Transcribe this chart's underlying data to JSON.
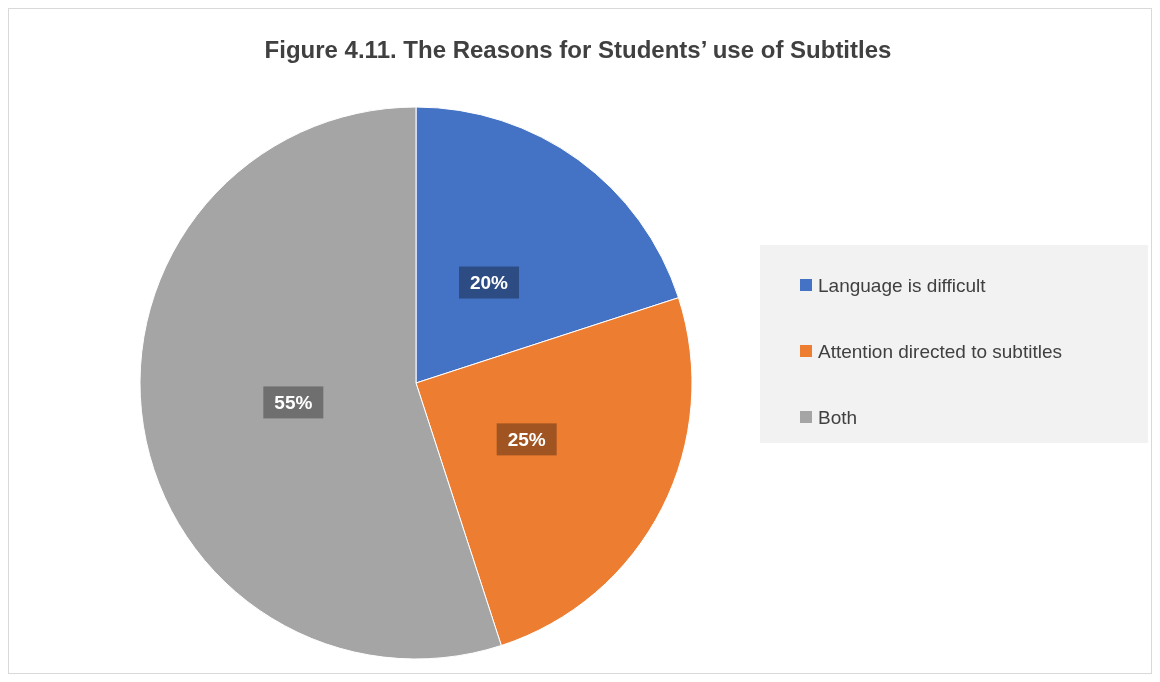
{
  "chart_data": {
    "type": "pie",
    "title": "Figure 4.11. The Reasons for Students’ use of Subtitles",
    "categories": [
      "Language is difficult",
      "Attention directed to subtitles",
      "Both"
    ],
    "values": [
      20,
      25,
      55
    ],
    "colors": [
      "#4472c4",
      "#ed7d31",
      "#a5a5a5"
    ],
    "value_labels": [
      "20%",
      "25%",
      "55%"
    ],
    "legend": "right"
  }
}
